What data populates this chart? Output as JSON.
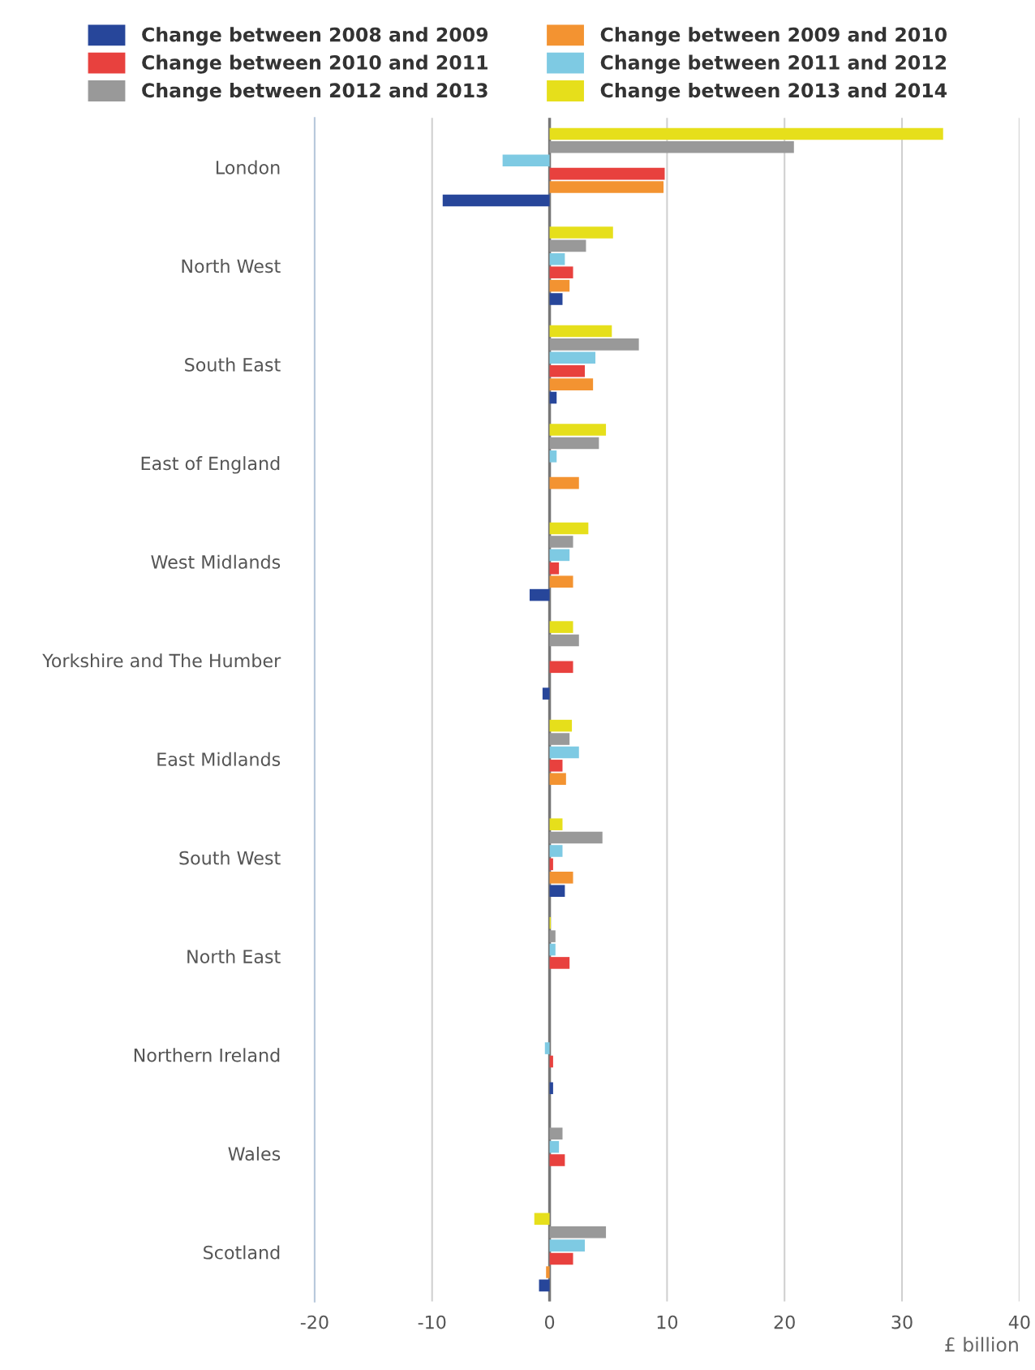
{
  "chart_data": {
    "type": "bar",
    "orientation": "horizontal",
    "xlabel": "£ billion",
    "categories": [
      "London",
      "North West",
      "South East",
      "East of England",
      "West Midlands",
      "Yorkshire and The Humber",
      "East Midlands",
      "South West",
      "North East",
      "Northern Ireland",
      "Wales",
      "Scotland"
    ],
    "series": [
      {
        "name": "Change between 2008 and 2009",
        "color": "#27469a",
        "values": [
          -9.1,
          1.1,
          0.6,
          null,
          -1.7,
          -0.6,
          null,
          1.3,
          null,
          0.3,
          null,
          -0.9
        ]
      },
      {
        "name": "Change between 2009 and 2010",
        "color": "#f39331",
        "values": [
          9.7,
          1.7,
          3.7,
          2.5,
          2.0,
          null,
          1.4,
          2.0,
          null,
          null,
          null,
          -0.3
        ]
      },
      {
        "name": "Change between 2010 and 2011",
        "color": "#e8413e",
        "values": [
          9.8,
          2.0,
          3.0,
          null,
          0.8,
          2.0,
          1.1,
          0.3,
          1.7,
          0.3,
          1.3,
          2.0
        ]
      },
      {
        "name": "Change between 2011 and 2012",
        "color": "#7ecae3",
        "values": [
          -4.0,
          1.3,
          3.9,
          0.6,
          1.7,
          null,
          2.5,
          1.1,
          0.5,
          -0.4,
          0.8,
          3.0
        ]
      },
      {
        "name": "Change between 2012 and 2013",
        "color": "#999999",
        "values": [
          20.8,
          3.1,
          7.6,
          4.2,
          2.0,
          2.5,
          1.7,
          4.5,
          0.5,
          null,
          1.1,
          4.8
        ]
      },
      {
        "name": "Change between 2013 and 2014",
        "color": "#e6df1b",
        "values": [
          33.5,
          5.4,
          5.3,
          4.8,
          3.3,
          2.0,
          1.9,
          1.1,
          0.1,
          null,
          null,
          -1.3
        ]
      }
    ],
    "xlim": [
      -20,
      40
    ],
    "xticks": [
      -20,
      -10,
      0,
      10,
      20,
      30,
      40
    ],
    "grid": "x",
    "legend": "top",
    "ref_lines": [
      {
        "axis": "x",
        "value": 0,
        "color": "#777777"
      }
    ]
  }
}
